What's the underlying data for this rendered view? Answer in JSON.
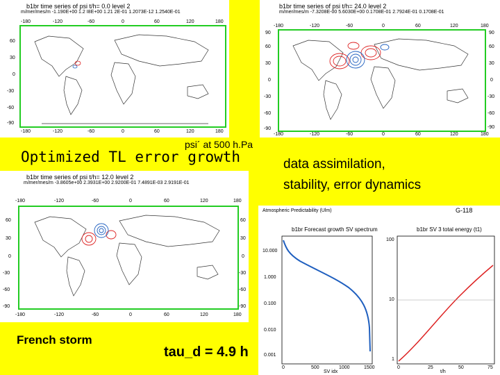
{
  "slide": {
    "heading": "Optimized TL error growth",
    "psi_label": "psi´ at 500 h.Pa",
    "right_text_line1": "data assimilation,",
    "right_text_line2": "stability, error dynamics",
    "storm_label": "French storm",
    "tau_label": "tau_d = 4.9 h"
  },
  "panels": [
    {
      "title": "b1br time series of psi t/h=        0.0 level   2",
      "meta": "m/mer/mes/m  -1.190E+00   1.2 I8E+00   1.21 2E-01   1.2073E-12   1.2540E-01",
      "lon_ticks": [
        "-180",
        "-120",
        "-60",
        "0",
        "60",
        "120",
        "180"
      ],
      "lat_ticks": [
        "60",
        "30",
        "0",
        "-30",
        "-60",
        "-90"
      ]
    },
    {
      "title": "b1br time series of psi t/h=       24.0 level   2",
      "meta": "m/mer/mes/m  -7.3208E-00   5.6030E+00   0.1708E-01   2.7924E-01   0.1708E-01",
      "lon_ticks": [
        "-180",
        "-120",
        "-60",
        "0",
        "60",
        "120",
        "180"
      ],
      "lat_ticks": [
        "90",
        "60",
        "30",
        "0",
        "-30",
        "-60",
        "-90"
      ]
    },
    {
      "title": "b1br time series of psi t/h=       12.0 level   2",
      "meta": "m/mer/mes/m  -3.8605e+00   2.3931E+00   2.9200E-01   7.4891E-03   2.9191E-01",
      "lon_ticks": [
        "-180",
        "-120",
        "-60",
        "0",
        "60",
        "120",
        "180"
      ],
      "lat_ticks": [
        "60",
        "30",
        "0",
        "-30",
        "-60",
        "-90"
      ]
    }
  ],
  "spectrum_panel": {
    "header": "Atmospheric Predictability (Ulm)",
    "corner_label": "G-118",
    "left_title": "b1br Forecast growth SV spectrum",
    "right_title": "b1br SV 3 total energy (t1)",
    "left_yticks": [
      "10.000",
      "1.000",
      "0.100",
      "0.010",
      "0.001"
    ],
    "left_xticks": [
      "0",
      "500",
      "1000",
      "1500"
    ],
    "right_yticks": [
      "100",
      "10",
      "1"
    ],
    "right_xticks": [
      "0",
      "25",
      "50",
      "75"
    ],
    "left_xlabel": "SV idx",
    "right_xlabel": "t/h"
  },
  "colors": {
    "background": "#ffff00",
    "frame": "#22cc22",
    "curve_blue": "#1f5fbf",
    "curve_red": "#dd2222"
  }
}
